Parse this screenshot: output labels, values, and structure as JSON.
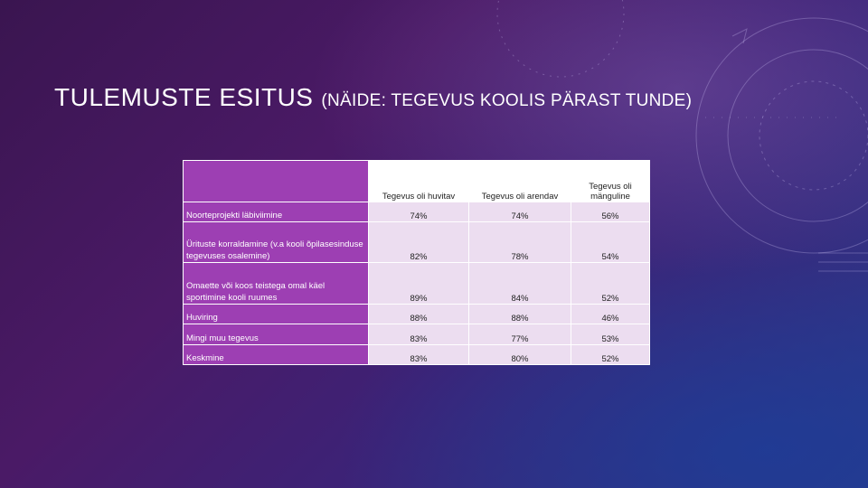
{
  "slide": {
    "title_main": "TULEMUSTE ESITUS",
    "title_sub": "(NÄIDE: TEGEVUS KOOLIS PÄRAST TUNDE)"
  },
  "table": {
    "headers": [
      "",
      "Tegevus oli huvitav",
      "Tegevus oli arendav",
      "Tegevus oli mänguline"
    ],
    "rows": [
      {
        "label": "Noorteprojekti läbiviimine",
        "values": [
          "74%",
          "74%",
          "56%"
        ]
      },
      {
        "label": "Ürituste korraldamine (v.a kooli õpilasesinduse tegevuses osalemine)",
        "values": [
          "82%",
          "78%",
          "54%"
        ]
      },
      {
        "label": "Omaette või koos teistega omal käel sportimine kooli ruumes",
        "values": [
          "89%",
          "84%",
          "52%"
        ]
      },
      {
        "label": "Huviring",
        "values": [
          "88%",
          "88%",
          "46%"
        ]
      },
      {
        "label": "Mingi muu tegevus",
        "values": [
          "83%",
          "77%",
          "53%"
        ]
      },
      {
        "label": "Keskmine",
        "values": [
          "83%",
          "80%",
          "52%"
        ]
      }
    ]
  },
  "colors": {
    "row_label_bg": "#9d3fb3",
    "value_bg": "#ecddf0",
    "header_bg": "#ffffff"
  }
}
